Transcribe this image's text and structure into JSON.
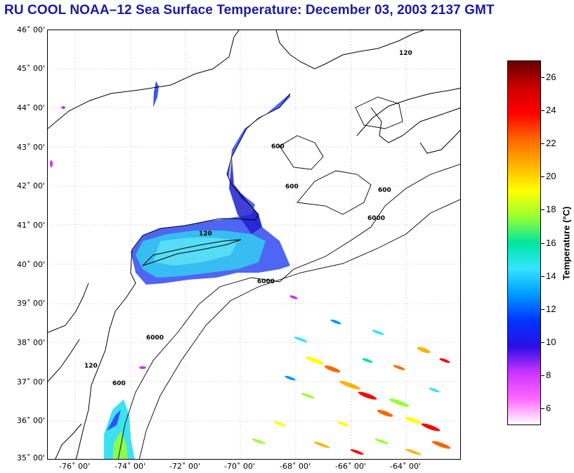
{
  "title": "RU COOL  NOAA–12  Sea Surface Temperature:  December 03, 2003 2137 GMT",
  "map": {
    "lat_labels": [
      "46˚ 00'",
      "45˚ 00'",
      "44˚ 00'",
      "43˚ 00'",
      "42˚ 00'",
      "41˚ 00'",
      "40˚ 00'",
      "39˚ 00'",
      "38˚ 00'",
      "37˚ 00'",
      "36˚ 00'",
      "35˚ 00'"
    ],
    "lon_labels": [
      "-76˚ 00'",
      "-74˚ 00'",
      "-72˚ 00'",
      "-70˚ 00'",
      "-68˚ 00'",
      "-66˚ 00'",
      "-64˚ 00'"
    ],
    "lat_range": [
      35,
      46
    ],
    "lon_range": [
      -77,
      -62
    ],
    "grid": "dotted",
    "isobath_labels": [
      "6000",
      "600",
      "120"
    ],
    "colors": {
      "land": "#ffffff",
      "coastline": "#000000",
      "grid": "#888888"
    }
  },
  "colorbar": {
    "title": "Temperature (°C)",
    "ticks": [
      "26",
      "24",
      "22",
      "20",
      "18",
      "16",
      "14",
      "12",
      "10",
      "8",
      "6"
    ],
    "range": [
      5,
      27
    ],
    "gradient": [
      "#ffffff",
      "#ff66ff",
      "#cc33ff",
      "#2a10e6",
      "#0033ff",
      "#0099ff",
      "#33e5ff",
      "#00e6a0",
      "#99ff33",
      "#ffff00",
      "#ffb300",
      "#ff6600",
      "#ff0000",
      "#cc0000",
      "#660000"
    ]
  }
}
